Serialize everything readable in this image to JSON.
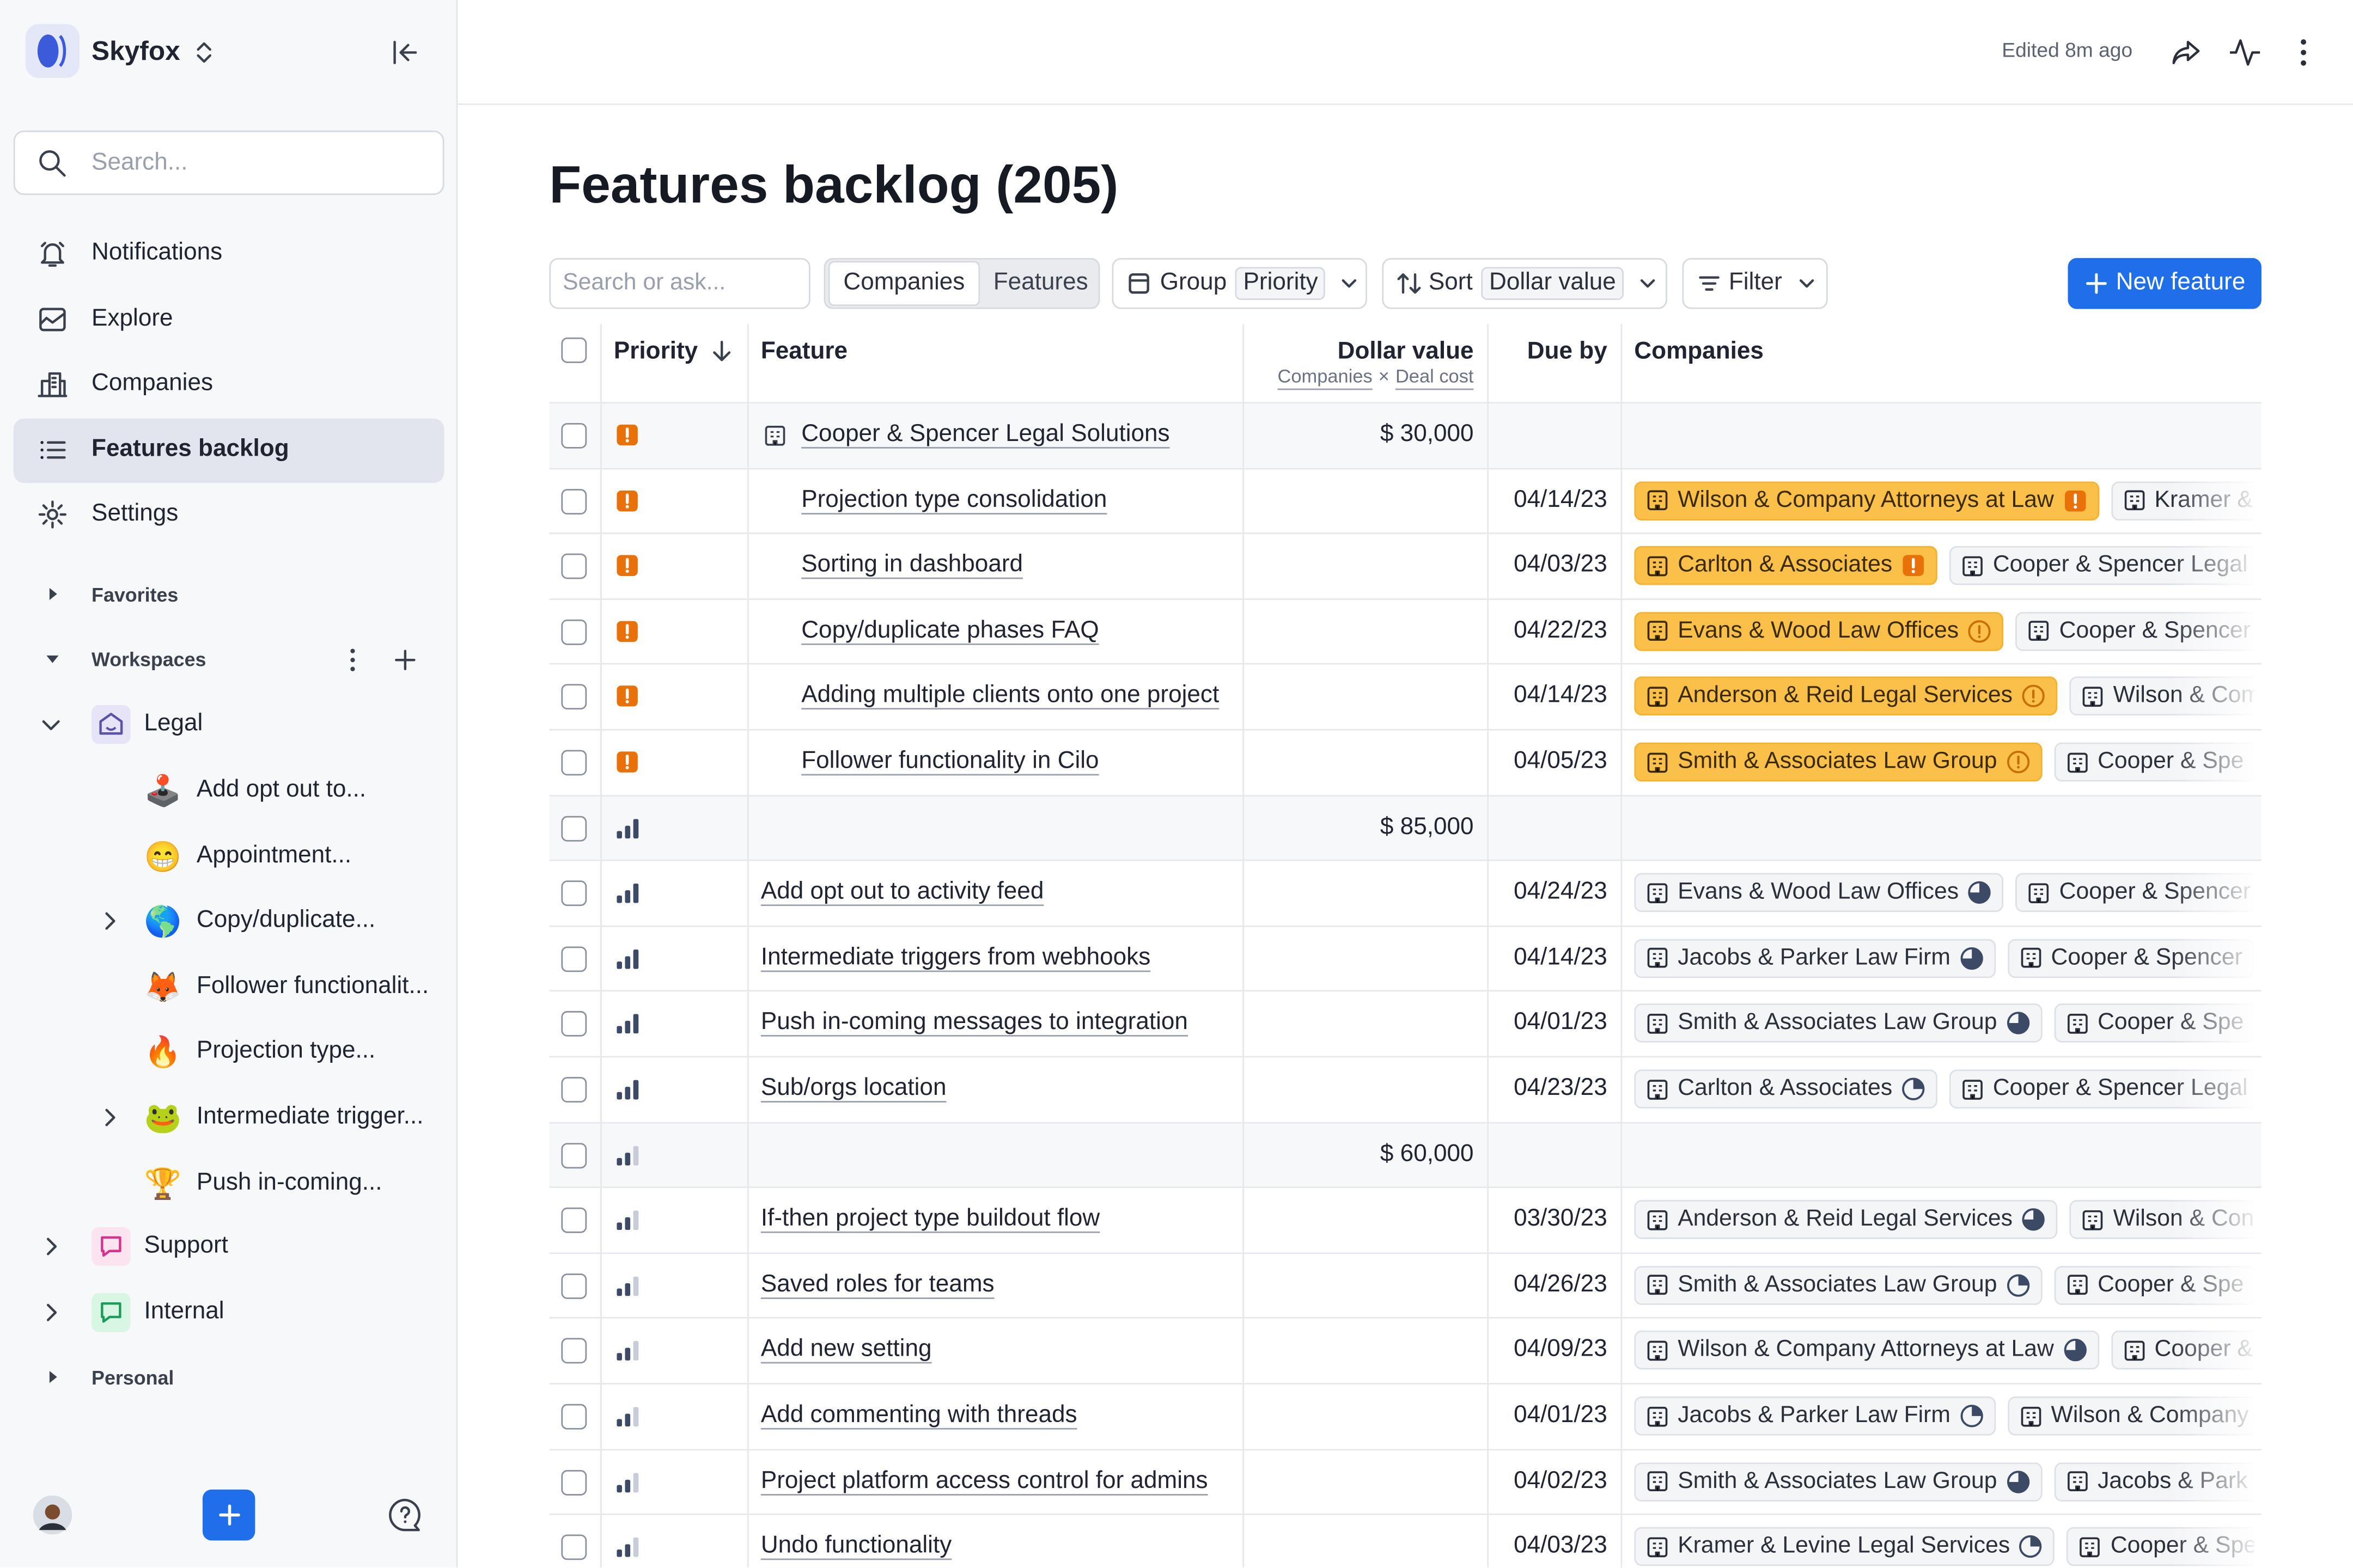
{
  "sidebar": {
    "workspace": "Skyfox",
    "search_placeholder": "Search...",
    "nav": [
      "Notifications",
      "Explore",
      "Companies",
      "Features backlog",
      "Settings"
    ],
    "active": 3,
    "favorites": "Favorites",
    "workspaces": "Workspaces",
    "legal": {
      "name": "Legal",
      "children": [
        {
          "icon": "🕹️",
          "label": "Add opt out to..."
        },
        {
          "icon": "😁",
          "label": "Appointment..."
        },
        {
          "icon": "🌎",
          "label": "Copy/duplicate...",
          "expandable": true
        },
        {
          "icon": "🦊",
          "label": "Follower functionalit..."
        },
        {
          "icon": "🔥",
          "label": "Projection type..."
        },
        {
          "icon": "🐸",
          "label": "Intermediate trigger...",
          "expandable": true
        },
        {
          "icon": "🏆",
          "label": "Push in-coming..."
        }
      ]
    },
    "others": [
      {
        "label": "Support",
        "color": "#d6338f",
        "bg": "#fbe3f0"
      },
      {
        "label": "Internal",
        "color": "#1a9c5a",
        "bg": "#d9f5e4"
      }
    ],
    "personal": "Personal"
  },
  "header": {
    "edited": "Edited 8m ago"
  },
  "page": {
    "title": "Features backlog (205)"
  },
  "toolbar": {
    "search_placeholder": "Search or ask...",
    "tabs": [
      "Companies",
      "Features"
    ],
    "active_tab": 0,
    "group_label": "Group",
    "group_value": "Priority",
    "sort_label": "Sort",
    "sort_value": "Dollar value",
    "filter": "Filter",
    "new_button": "New feature"
  },
  "table": {
    "columns": {
      "priority": "Priority",
      "feature": "Feature",
      "value": "Dollar value",
      "due": "Due by",
      "companies": "Companies"
    },
    "value_sub": [
      "Companies",
      "×",
      "Deal cost"
    ],
    "rows": [
      {
        "group": true,
        "priority": "urgent",
        "feature": "Cooper & Spencer Legal Solutions",
        "value": "$ 30,000"
      },
      {
        "priority": "urgent",
        "indent": true,
        "feature": "Projection type consolidation",
        "due": "04/14/23",
        "companies": [
          {
            "name": "Wilson & Company Attorneys at Law",
            "status": "alert-square",
            "highlight": true
          },
          {
            "name": "Kramer &"
          }
        ]
      },
      {
        "priority": "urgent",
        "indent": true,
        "feature": "Sorting in dashboard",
        "due": "04/03/23",
        "companies": [
          {
            "name": "Carlton & Associates",
            "status": "alert-square",
            "highlight": true
          },
          {
            "name": "Cooper & Spencer Legal"
          }
        ]
      },
      {
        "priority": "urgent",
        "indent": true,
        "feature": "Copy/duplicate phases FAQ",
        "due": "04/22/23",
        "companies": [
          {
            "name": "Evans & Wood Law Offices",
            "status": "alert-circle",
            "highlight": true
          },
          {
            "name": "Cooper & Spencer"
          }
        ]
      },
      {
        "priority": "urgent",
        "indent": true,
        "feature": "Adding multiple clients onto one project",
        "due": "04/14/23",
        "companies": [
          {
            "name": "Anderson & Reid Legal Services",
            "status": "alert-circle",
            "highlight": true
          },
          {
            "name": "Wilson & Com"
          }
        ]
      },
      {
        "priority": "urgent",
        "indent": true,
        "feature": "Follower functionality in Cilo",
        "due": "04/05/23",
        "companies": [
          {
            "name": "Smith & Associates Law Group",
            "status": "alert-circle",
            "highlight": true
          },
          {
            "name": "Cooper & Spe"
          }
        ]
      },
      {
        "group": true,
        "priority": "high",
        "value": "$ 85,000"
      },
      {
        "priority": "high",
        "feature": "Add opt out to activity feed",
        "due": "04/24/23",
        "companies": [
          {
            "name": "Evans & Wood Law Offices",
            "status": "pie-75"
          },
          {
            "name": "Cooper & Spencer"
          }
        ]
      },
      {
        "priority": "high",
        "feature": "Intermediate triggers from webhooks",
        "due": "04/14/23",
        "companies": [
          {
            "name": "Jacobs & Parker Law Firm",
            "status": "pie-75"
          },
          {
            "name": "Cooper & Spencer"
          }
        ]
      },
      {
        "priority": "high",
        "feature": "Push in-coming messages to integration",
        "due": "04/01/23",
        "companies": [
          {
            "name": "Smith & Associates Law Group",
            "status": "pie-75"
          },
          {
            "name": "Cooper & Spe"
          }
        ]
      },
      {
        "priority": "high",
        "feature": "Sub/orgs location",
        "due": "04/23/23",
        "companies": [
          {
            "name": "Carlton & Associates",
            "status": "pie-25"
          },
          {
            "name": "Cooper & Spencer Legal"
          }
        ]
      },
      {
        "group": true,
        "priority": "medium",
        "value": "$ 60,000"
      },
      {
        "priority": "medium",
        "feature": "If-then project type buildout flow",
        "due": "03/30/23",
        "companies": [
          {
            "name": "Anderson & Reid Legal Services",
            "status": "pie-75"
          },
          {
            "name": "Wilson & Con"
          }
        ]
      },
      {
        "priority": "medium",
        "feature": "Saved roles for teams",
        "due": "04/26/23",
        "companies": [
          {
            "name": "Smith & Associates Law Group",
            "status": "pie-25"
          },
          {
            "name": "Cooper & Spe"
          }
        ]
      },
      {
        "priority": "medium",
        "feature": "Add new setting",
        "due": "04/09/23",
        "companies": [
          {
            "name": "Wilson & Company Attorneys at Law",
            "status": "pie-75"
          },
          {
            "name": "Cooper &"
          }
        ]
      },
      {
        "priority": "medium",
        "feature": "Add commenting with threads",
        "due": "04/01/23",
        "companies": [
          {
            "name": "Jacobs & Parker Law Firm",
            "status": "pie-25"
          },
          {
            "name": "Wilson & Company"
          }
        ]
      },
      {
        "priority": "medium",
        "feature": "Project platform access control for admins",
        "due": "04/02/23",
        "companies": [
          {
            "name": "Smith & Associates Law Group",
            "status": "pie-75"
          },
          {
            "name": "Jacobs & Park"
          }
        ]
      },
      {
        "priority": "medium",
        "feature": "Undo functionality",
        "due": "04/03/23",
        "companies": [
          {
            "name": "Kramer & Levine Legal Services",
            "status": "pie-25"
          },
          {
            "name": "Cooper & Spe"
          }
        ]
      }
    ]
  }
}
